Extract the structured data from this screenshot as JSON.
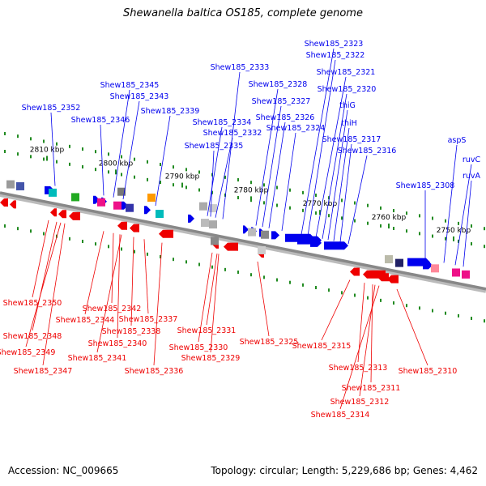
{
  "title": "Shewanella baltica OS185, complete genome",
  "footer": {
    "accession": "Accession: NC_009665",
    "topology": "Topology: circular; Length: 5,229,686 bp; Genes: 4,462"
  },
  "colors": {
    "forward_strand": "#0000ee",
    "reverse_strand": "#ee0000",
    "tick": "#228b22",
    "backbone": "#888888"
  },
  "kbp_labels": [
    "2810 kbp",
    "2800 kbp",
    "2790 kbp",
    "2780 kbp",
    "2770 kbp",
    "2760 kbp",
    "2750 kbp"
  ],
  "top_labels": [
    "Shew185_2352",
    "Shew185_2346",
    "Shew185_2345",
    "Shew185_2343",
    "Shew185_2339",
    "Shew185_2333",
    "Shew185_2334",
    "Shew185_2332",
    "Shew185_2335",
    "Shew185_2328",
    "Shew185_2327",
    "Shew185_2326",
    "Shew185_2324",
    "Shew185_2323",
    "Shew185_2322",
    "Shew185_2321",
    "Shew185_2320",
    "thiG",
    "thiH",
    "Shew185_2317",
    "Shew185_2316",
    "Shew185_2308",
    "aspS",
    "ruvC",
    "ruvA"
  ],
  "bottom_labels": [
    "Shew185_2350",
    "Shew185_2348",
    "Shew185_2349",
    "Shew185_2347",
    "Shew185_2344",
    "Shew185_2342",
    "Shew185_2340",
    "Shew185_2341",
    "Shew185_2338",
    "Shew185_2337",
    "Shew185_2336",
    "Shew185_2331",
    "Shew185_2330",
    "Shew185_2329",
    "Shew185_2325",
    "Shew185_2315",
    "Shew185_2313",
    "Shew185_2311",
    "Shew185_2312",
    "Shew185_2314",
    "Shew185_2310"
  ]
}
